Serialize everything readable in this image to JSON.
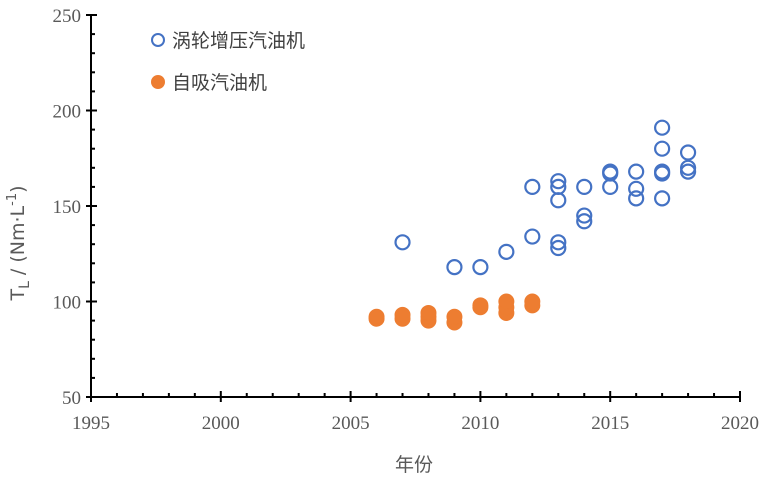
{
  "chart_data": {
    "type": "scatter",
    "xlabel": "年份",
    "ylabel": "T_L / (Nm·L⁻¹)",
    "ylabel_parts": {
      "main": "T",
      "sub": "L",
      "rest": " / (Nm·L",
      "sup": "-1",
      "close": ")"
    },
    "xlim": [
      1995,
      2020
    ],
    "ylim": [
      50,
      250
    ],
    "xticks": [
      1995,
      2000,
      2005,
      2010,
      2015,
      2020
    ],
    "yticks": [
      50,
      100,
      150,
      200,
      250
    ],
    "grid": false,
    "legend_position": "top-left",
    "series": [
      {
        "name": "涡轮增压汽油机",
        "marker": "open-circle",
        "color": "#4472C4",
        "points": [
          [
            2007,
            131
          ],
          [
            2009,
            118
          ],
          [
            2010,
            118
          ],
          [
            2011,
            126
          ],
          [
            2012,
            134
          ],
          [
            2012,
            160
          ],
          [
            2013,
            163
          ],
          [
            2013,
            160
          ],
          [
            2013,
            153
          ],
          [
            2013,
            131
          ],
          [
            2013,
            128
          ],
          [
            2014,
            160
          ],
          [
            2014,
            145
          ],
          [
            2014,
            142
          ],
          [
            2015,
            168
          ],
          [
            2015,
            167
          ],
          [
            2015,
            160
          ],
          [
            2016,
            168
          ],
          [
            2016,
            159
          ],
          [
            2016,
            154
          ],
          [
            2017,
            191
          ],
          [
            2017,
            180
          ],
          [
            2017,
            168
          ],
          [
            2017,
            167
          ],
          [
            2017,
            154
          ],
          [
            2018,
            178
          ],
          [
            2018,
            170
          ],
          [
            2018,
            168
          ]
        ]
      },
      {
        "name": "自吸汽油机",
        "marker": "filled-circle",
        "color": "#ED7D31",
        "points": [
          [
            2006,
            91
          ],
          [
            2006,
            92
          ],
          [
            2007,
            91
          ],
          [
            2007,
            93
          ],
          [
            2008,
            90
          ],
          [
            2008,
            92
          ],
          [
            2008,
            94
          ],
          [
            2009,
            89
          ],
          [
            2009,
            92
          ],
          [
            2010,
            97
          ],
          [
            2010,
            98
          ],
          [
            2011,
            94
          ],
          [
            2011,
            97
          ],
          [
            2011,
            100
          ],
          [
            2012,
            98
          ],
          [
            2012,
            100
          ]
        ]
      }
    ]
  }
}
